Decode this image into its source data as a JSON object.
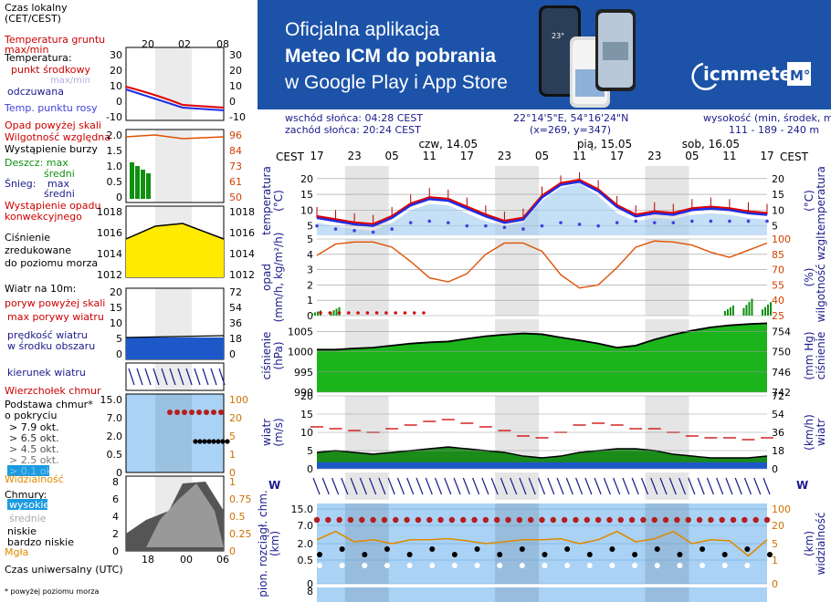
{
  "banner": {
    "line1": "Oficjalna aplikacja",
    "line2": "Meteo ICM do pobrania",
    "line3": "w Google Play i App Store",
    "logo_text": "icmmeteo",
    "logo_badge": "M°",
    "phone_temp": "23°",
    "colors": {
      "background": "#1c53a8",
      "text": "#ffffff"
    }
  },
  "info": {
    "sunrise": "wschód słońca: 04:28 CEST",
    "sunset": "zachód słońca: 20:24 CEST",
    "coords": "22°14'5\"E, 54°16'24\"N",
    "grid": "(x=269, y=347)",
    "height_label": "wysokość (min, środek, max)",
    "height_values": "111 - 189 - 240 m"
  },
  "legend": {
    "time_zone": "Czas lokalny\n(CET/CEST)",
    "time_ticks": [
      "20",
      "02",
      "08"
    ],
    "soil_temp": "Temperatura gruntu\nmax/min",
    "temperature": "Temperatura:",
    "midpoint": "punkt środkowy",
    "max_min": "max/min",
    "felt": "odczuwana",
    "dew": "Temp. punktu rosy",
    "rain_above": "Opad powyżej skali",
    "humidity": "Wilgotność względna",
    "storm": "Wystąpienie burzy",
    "rain_max": "Deszcz: max",
    "rain_mid": "średni",
    "snow": "Śnieg:",
    "snow_max": "max",
    "snow_mid": "średni",
    "conv": "Wystąpienie opadu\nkonwekcyjnego",
    "pressure": "Ciśnienie\nzredukowane\ndo poziomu morza",
    "wind": "Wiatr na 10m:",
    "gust_above": "poryw powyżej skali",
    "gust_max": "max porywy wiatru",
    "wind_mean": "prędkość wiatru\nw środku obszaru",
    "wind_dir": "kierunek wiatru",
    "cloud_top": "Wierzchołek chmur",
    "cloud_base": "Podstawa chmur*\no pokryciu",
    "okt": [
      "> 7.9 okt.",
      "> 6.5 okt.",
      "> 4.5 okt.",
      "> 2.5 okt.",
      "> 0.1 okt."
    ],
    "visibility": "Widzialność",
    "clouds": "Chmury:",
    "high": "wysokie",
    "medium": "średnie",
    "low": "niskie",
    "very_low": "bardzo niskie",
    "fog": "Mgła",
    "utc": "Czas uniwersalny (UTC)",
    "utc_ticks": [
      "18",
      "00",
      "06"
    ],
    "footnote": "* powyżej poziomu morza",
    "temp_ticks": [
      "30",
      "20",
      "10",
      "0",
      "-10"
    ],
    "rain_ticks": [
      "2.0",
      "1.5",
      "1.0",
      "0.5",
      "0"
    ],
    "hum_ticks": [
      "96",
      "84",
      "73",
      "61",
      "50"
    ],
    "press_ticks": [
      "1018",
      "1016",
      "1014",
      "1012"
    ],
    "wind_ticks": [
      "20",
      "15",
      "10",
      "5",
      "0"
    ],
    "windkm_ticks": [
      "72",
      "54",
      "36",
      "18",
      "0"
    ],
    "cb_ticks": [
      "15.0",
      "7.0",
      "2.0",
      "0.5",
      "0"
    ],
    "vis_ticks": [
      "100",
      "20",
      "5",
      "1",
      "0"
    ],
    "cl_ticks": [
      "8",
      "6",
      "4",
      "2",
      "0"
    ],
    "cl_right": [
      "1",
      "0.75",
      "0.5",
      "0.25",
      "0"
    ]
  },
  "axis": {
    "cest": "CEST",
    "days": [
      "czw, 14.05",
      "pią, 15.05",
      "sob, 16.05"
    ],
    "hours": [
      "17",
      "23",
      "05",
      "11",
      "17",
      "23",
      "05",
      "11",
      "17",
      "23",
      "05",
      "11",
      "17"
    ]
  },
  "panels": {
    "temperature": {
      "label": "temperatura\n(°C)",
      "ticks": [
        "20",
        "15",
        "10",
        "5"
      ],
      "right_label": "(°C)\ntemperatura"
    },
    "precip": {
      "label": "opad\n(mm/h, kg/m²/h)",
      "ticks": [
        "5",
        "4",
        "3",
        "2",
        "1",
        "0"
      ],
      "right_label": "(%)\nwilgotność wzgl.",
      "right_ticks": [
        "100",
        "85",
        "70",
        "55",
        "40",
        "25"
      ]
    },
    "pressure": {
      "label": "ciśnienie\n(hPa)",
      "ticks": [
        "1005",
        "1000",
        "995",
        "990"
      ],
      "right_label": "(mm Hg)\nciśnienie",
      "right_ticks": [
        "754",
        "750",
        "746",
        "742"
      ]
    },
    "wind": {
      "label": "wiatr\n(m/s)",
      "ticks": [
        "20",
        "15",
        "10",
        "5",
        "0"
      ],
      "right_label": "(km/h)\nwiatr",
      "right_ticks": [
        "72",
        "54",
        "36",
        "18",
        "0"
      ]
    },
    "clouds": {
      "label": "pion. rozciągł. chm.\n(km)",
      "ticks": [
        "15.0",
        "7.0",
        "2.0",
        "0.5",
        "0"
      ],
      "right_label": "(km)\nwidzialność",
      "right_ticks": [
        "100",
        "20",
        "5",
        "1",
        "0"
      ]
    },
    "next_tick": "8"
  },
  "chart_data": [
    {
      "type": "line",
      "title": "temperatura",
      "ylabel": "temperatura (°C)",
      "ylim": [
        2,
        24
      ],
      "x": [
        0,
        3,
        6,
        9,
        12,
        15,
        18,
        21,
        24,
        27,
        30,
        33,
        36,
        39,
        42,
        45,
        48,
        51,
        54,
        57,
        60,
        63,
        66,
        69,
        72
      ],
      "series": [
        {
          "name": "max",
          "color": "#e00000",
          "values": [
            8.5,
            7.5,
            6.5,
            6,
            8.5,
            12.5,
            14.5,
            14,
            11.5,
            9,
            7,
            8,
            15,
            18.5,
            19.5,
            17,
            12,
            9,
            10,
            9.5,
            11,
            11.5,
            11,
            10,
            9.5
          ]
        },
        {
          "name": "punkt środkowy",
          "color": "#e00000",
          "values": [
            7.5,
            6.5,
            5.5,
            5,
            7.5,
            11.5,
            13.5,
            13,
            10.5,
            8,
            6,
            7,
            14,
            18,
            19,
            16,
            11,
            8,
            9,
            8.5,
            10,
            10.5,
            10,
            9,
            8.5
          ]
        },
        {
          "name": "odczuwana",
          "color": "#1e2ee6",
          "values": [
            6,
            5,
            4,
            3.5,
            6,
            10,
            12,
            11.5,
            9,
            6.5,
            5,
            6,
            13,
            17,
            18.5,
            14.5,
            9,
            6.5,
            7.5,
            7,
            8.5,
            9,
            8.5,
            7.5,
            7
          ]
        },
        {
          "name": "Temp. punktu rosy",
          "color": "#4040e0",
          "values": [
            5,
            4,
            3.5,
            3,
            4,
            6,
            6.5,
            6,
            5,
            5,
            4.5,
            4,
            5,
            6,
            5.5,
            5,
            6,
            6.5,
            6,
            6,
            6.5,
            6.5,
            6.5,
            6.5,
            6.5
          ]
        }
      ]
    },
    {
      "type": "line",
      "title": "opad / wilgotność",
      "ylabel": "opad (mm/h)",
      "ylim": [
        0,
        5
      ],
      "x": [
        0,
        3,
        6,
        9,
        12,
        15,
        18,
        21,
        24,
        27,
        30,
        33,
        36,
        39,
        42,
        45,
        48,
        51,
        54,
        57,
        60,
        63,
        66,
        69,
        72
      ],
      "series": [
        {
          "name": "wilgotność względna",
          "color": "#e05000",
          "values": [
            84,
            95,
            97,
            97,
            92,
            78,
            62,
            58,
            66,
            85,
            96,
            96,
            88,
            65,
            52,
            55,
            72,
            92,
            98,
            97,
            94,
            87,
            82,
            89,
            96
          ]
        },
        {
          "name": "opad",
          "color": "#109010",
          "values": [
            0.3,
            0.5,
            0,
            0,
            0,
            0,
            0,
            0,
            0,
            0,
            0,
            0,
            0,
            0,
            0,
            0,
            0,
            0,
            0,
            0,
            0,
            0,
            0.6,
            1.0,
            0.8
          ]
        }
      ]
    },
    {
      "type": "area",
      "title": "ciśnienie",
      "ylabel": "ciśnienie (hPa)",
      "ylim": [
        990,
        1008
      ],
      "x": [
        0,
        3,
        6,
        9,
        12,
        15,
        18,
        21,
        24,
        27,
        30,
        33,
        36,
        39,
        42,
        45,
        48,
        51,
        54,
        57,
        60,
        63,
        66,
        69,
        72
      ],
      "series": [
        {
          "name": "ciśnienie",
          "color": "#1bb41b",
          "values": [
            1000.5,
            1000.5,
            1000.8,
            1001,
            1001.5,
            1002,
            1002.3,
            1002.5,
            1003.2,
            1003.8,
            1004.2,
            1004.5,
            1004.3,
            1003.5,
            1002.8,
            1002,
            1001,
            1001.5,
            1003,
            1004.2,
            1005.2,
            1006,
            1006.5,
            1006.8,
            1007
          ]
        }
      ]
    },
    {
      "type": "bar",
      "title": "wiatr",
      "ylabel": "wiatr (m/s)",
      "ylim": [
        0,
        20
      ],
      "x": [
        0,
        3,
        6,
        9,
        12,
        15,
        18,
        21,
        24,
        27,
        30,
        33,
        36,
        39,
        42,
        45,
        48,
        51,
        54,
        57,
        60,
        63,
        66,
        69,
        72
      ],
      "series": [
        {
          "name": "prędkość wiatru",
          "color": "#1a8c1a",
          "values": [
            4.5,
            5,
            4.5,
            4,
            4.5,
            5,
            5.5,
            6,
            5.5,
            5,
            4.5,
            3.5,
            3,
            3.5,
            4.5,
            5,
            5.5,
            5.5,
            5,
            4,
            3.5,
            3,
            3,
            3,
            3.5
          ]
        },
        {
          "name": "max porywy wiatru",
          "color": "#cc0000",
          "values": [
            11.5,
            11,
            10.5,
            10,
            11,
            12,
            13,
            13.5,
            12.5,
            11.5,
            10.5,
            9,
            8.5,
            10,
            12,
            12.5,
            12,
            11,
            11,
            10,
            9,
            8.5,
            8.5,
            8,
            8.5
          ]
        }
      ]
    },
    {
      "type": "line",
      "title": "widzialność",
      "ylabel": "pion. rozciągł. chm. (km)",
      "ylim": [
        0,
        100
      ],
      "x": [
        0,
        3,
        6,
        9,
        12,
        15,
        18,
        21,
        24,
        27,
        30,
        33,
        36,
        39,
        42,
        45,
        48,
        51,
        54,
        57,
        60,
        63,
        66,
        69,
        72
      ],
      "series": [
        {
          "name": "Widzialność",
          "color": "#e08a00",
          "values": [
            30,
            15,
            20,
            30,
            5,
            30,
            30,
            35,
            25,
            5,
            20,
            30,
            30,
            35,
            5,
            30,
            15,
            20,
            35,
            15,
            5,
            30,
            25,
            2,
            30
          ]
        }
      ]
    }
  ]
}
